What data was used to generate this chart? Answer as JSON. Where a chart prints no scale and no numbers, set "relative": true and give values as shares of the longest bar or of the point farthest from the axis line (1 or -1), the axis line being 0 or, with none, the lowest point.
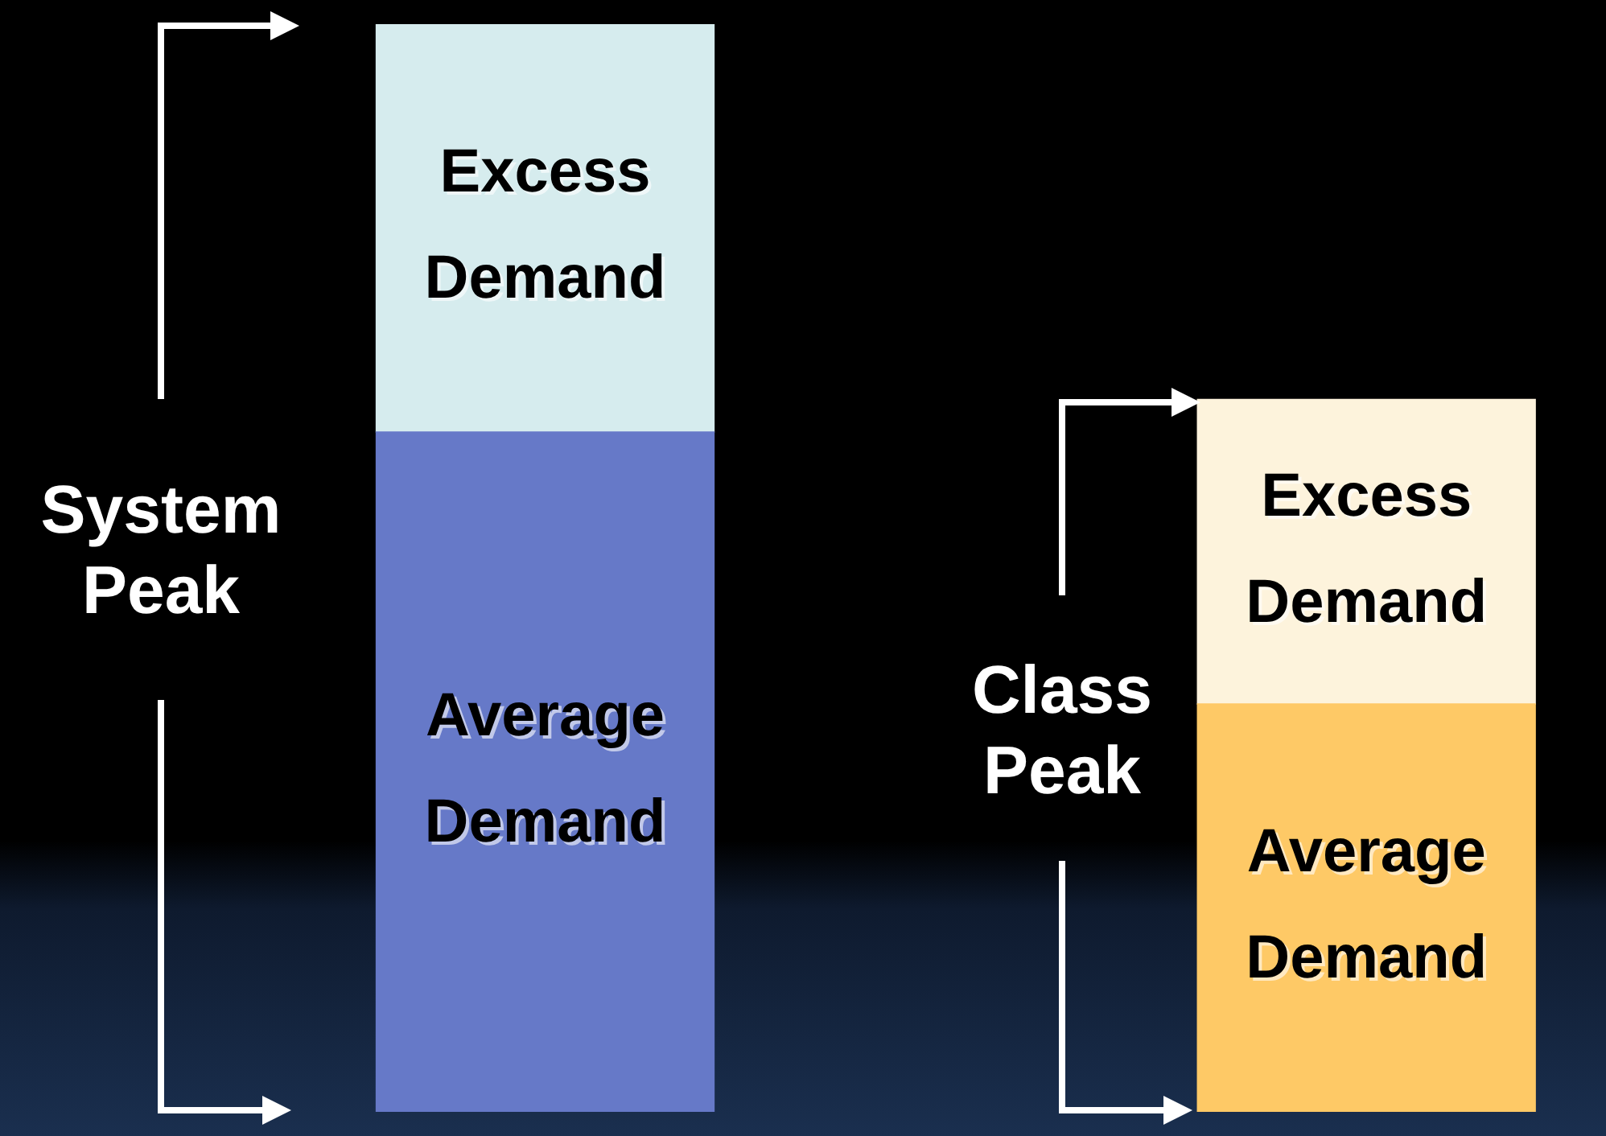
{
  "chart_data": {
    "type": "bar",
    "stacked": true,
    "relative": true,
    "categories": [
      null,
      null
    ],
    "series": [
      {
        "name": "Average Demand",
        "colors": [
          "#6679c8",
          "#fec966"
        ],
        "values": [
          0.625,
          0.375
        ]
      },
      {
        "name": "Excess Demand",
        "colors": [
          "#d6ecee",
          "#fdf3dc"
        ],
        "values": [
          0.375,
          0.28
        ]
      }
    ],
    "annotations": [
      "System Peak",
      "Class Peak"
    ],
    "legend": false
  }
}
